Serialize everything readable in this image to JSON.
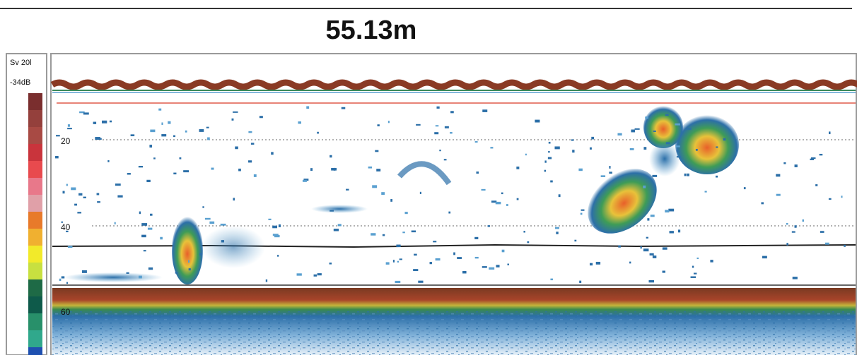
{
  "header": {
    "title": "55.13m"
  },
  "scale_panel": {
    "label": "Sv 20l",
    "top_value": "-34dB"
  },
  "echogram": {
    "depth_labels": [
      "20",
      "40",
      "60"
    ]
  }
}
